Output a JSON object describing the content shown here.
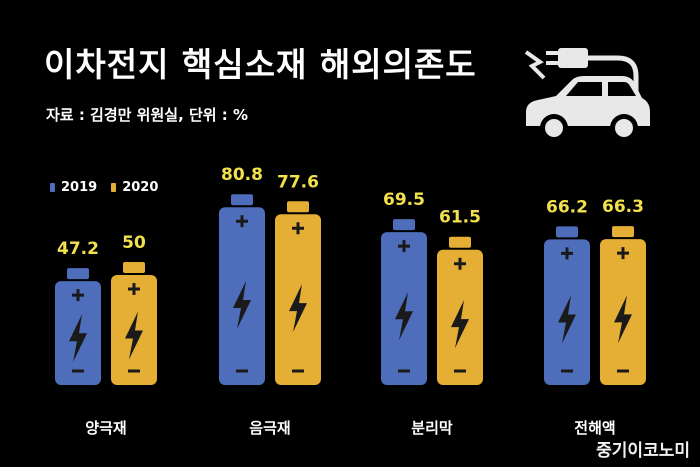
{
  "title": "이차전지 핵심소재 해외의존도",
  "source": "자료 : 김경만 위원실, 단위 : %",
  "watermark": "중기이코노미",
  "icons": {
    "header": "electric-car-plug-icon",
    "battery_symbol": "lightning-bolt-icon"
  },
  "colors": {
    "background": "#000000",
    "series_2019": "#4E6DBA",
    "series_2020": "#E5AE35",
    "value_labels": "#F2E14C"
  },
  "chart_data": {
    "type": "bar",
    "categories": [
      "양극재",
      "음극재",
      "분리막",
      "전해액"
    ],
    "series": [
      {
        "name": "2019",
        "values": [
          47.2,
          80.8,
          69.5,
          66.2
        ]
      },
      {
        "name": "2020",
        "values": [
          50,
          77.6,
          61.5,
          66.3
        ]
      }
    ],
    "value_labels": [
      [
        "47.2",
        "80.8",
        "69.5",
        "66.2"
      ],
      [
        "50",
        "77.6",
        "61.5",
        "66.3"
      ]
    ],
    "legend": {
      "position": "top-left",
      "entries": [
        "2019",
        "2020"
      ]
    },
    "grid": false
  }
}
